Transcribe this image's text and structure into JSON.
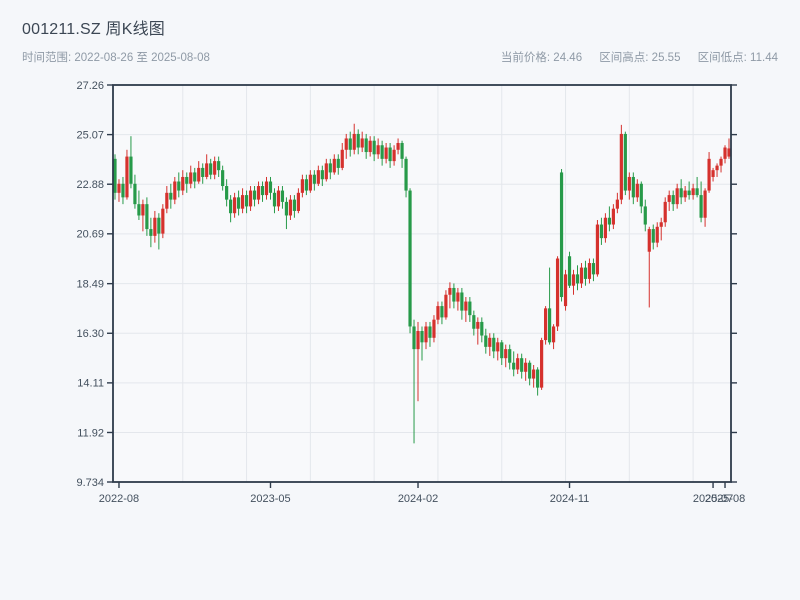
{
  "header": {
    "title": "001211.SZ 周K线图",
    "subtitle_left": "时间范围: 2022-08-26 至 2025-08-08",
    "meta": {
      "current": "当前价格: 24.46",
      "high": "区间高点: 25.55",
      "low": "区间低点: 11.44"
    }
  },
  "chart_data": {
    "type": "candlestick",
    "title": "001211.SZ 周K线图",
    "symbol": "001211.SZ",
    "period": "weekly",
    "date_range": {
      "start": "2022-08-26",
      "end": "2025-08-08"
    },
    "current_price": 24.46,
    "range_high": 25.55,
    "range_low": 11.44,
    "colors": {
      "up": "#d5312d",
      "down": "#279a49",
      "grid": "#e4e7ec",
      "spine": "#2e3b4b",
      "plot_bg": "#f8f9fb",
      "label": "#43505e"
    },
    "y_axis": {
      "min": 9.734,
      "max": 27.26,
      "tick_values": [
        27.26,
        25.07,
        22.88,
        20.69,
        18.49,
        16.3,
        14.11,
        11.92,
        9.734
      ],
      "tick_labels": [
        "27.26",
        "25.07",
        "22.88",
        "20.69",
        "18.49",
        "16.30",
        "14.11",
        "11.92",
        "9.734"
      ]
    },
    "x_axis": {
      "tick_labels": [
        "2022-08",
        "2023-05",
        "2024-02",
        "2024-11",
        "2025-07",
        "2025-08"
      ],
      "tick_week_indices": [
        1,
        39,
        76,
        114,
        150,
        153
      ]
    },
    "grid_week_indices": [
      17,
      33,
      49,
      65,
      81,
      97,
      113,
      129,
      145
    ],
    "ohlc_format": [
      "open",
      "high",
      "low",
      "close"
    ],
    "ohlc": [
      [
        24.0,
        24.2,
        22.2,
        22.5
      ],
      [
        22.5,
        23.1,
        22.1,
        22.9
      ],
      [
        22.9,
        23.2,
        22.0,
        22.3
      ],
      [
        22.3,
        24.4,
        22.2,
        24.1
      ],
      [
        24.1,
        25.0,
        22.7,
        22.9
      ],
      [
        22.9,
        23.3,
        21.8,
        22.0
      ],
      [
        22.0,
        22.6,
        21.3,
        21.5
      ],
      [
        21.5,
        22.2,
        20.8,
        22.0
      ],
      [
        22.0,
        22.3,
        20.6,
        20.9
      ],
      [
        20.9,
        21.4,
        20.1,
        20.6
      ],
      [
        20.6,
        21.7,
        20.3,
        21.4
      ],
      [
        21.4,
        21.6,
        20.0,
        20.7
      ],
      [
        20.7,
        22.0,
        20.5,
        21.8
      ],
      [
        21.8,
        22.8,
        21.6,
        22.5
      ],
      [
        22.5,
        22.9,
        21.8,
        22.2
      ],
      [
        22.2,
        23.2,
        22.0,
        23.0
      ],
      [
        23.0,
        23.4,
        22.3,
        22.6
      ],
      [
        22.6,
        23.5,
        22.4,
        23.2
      ],
      [
        23.2,
        23.4,
        22.5,
        22.9
      ],
      [
        22.9,
        23.7,
        22.7,
        23.4
      ],
      [
        23.4,
        23.6,
        22.7,
        23.0
      ],
      [
        23.0,
        23.9,
        22.9,
        23.6
      ],
      [
        23.6,
        23.8,
        22.9,
        23.2
      ],
      [
        23.2,
        24.2,
        23.1,
        23.8
      ],
      [
        23.8,
        24.0,
        23.1,
        23.3
      ],
      [
        23.3,
        24.1,
        23.1,
        23.9
      ],
      [
        23.9,
        24.1,
        23.2,
        23.5
      ],
      [
        23.5,
        23.7,
        22.6,
        22.8
      ],
      [
        22.8,
        23.1,
        21.9,
        22.2
      ],
      [
        22.2,
        22.4,
        21.2,
        21.6
      ],
      [
        21.6,
        22.5,
        21.4,
        22.3
      ],
      [
        22.3,
        22.6,
        21.5,
        21.8
      ],
      [
        21.8,
        22.7,
        21.6,
        22.4
      ],
      [
        22.4,
        22.6,
        21.6,
        21.9
      ],
      [
        21.9,
        22.8,
        21.7,
        22.6
      ],
      [
        22.6,
        22.8,
        21.9,
        22.2
      ],
      [
        22.2,
        23.0,
        22.0,
        22.8
      ],
      [
        22.8,
        23.0,
        22.1,
        22.4
      ],
      [
        22.4,
        23.2,
        22.2,
        23.0
      ],
      [
        23.0,
        23.2,
        22.2,
        22.5
      ],
      [
        22.5,
        22.7,
        21.6,
        21.9
      ],
      [
        21.9,
        22.8,
        21.7,
        22.6
      ],
      [
        22.6,
        22.8,
        21.8,
        22.1
      ],
      [
        22.1,
        22.3,
        20.9,
        21.5
      ],
      [
        21.5,
        22.4,
        21.3,
        22.2
      ],
      [
        22.2,
        22.4,
        21.4,
        21.7
      ],
      [
        21.7,
        22.7,
        21.6,
        22.5
      ],
      [
        22.5,
        23.3,
        22.3,
        23.1
      ],
      [
        23.1,
        23.3,
        22.4,
        22.6
      ],
      [
        22.6,
        23.5,
        22.5,
        23.3
      ],
      [
        23.3,
        23.5,
        22.6,
        22.9
      ],
      [
        22.9,
        23.7,
        22.8,
        23.5
      ],
      [
        23.5,
        23.7,
        22.8,
        23.1
      ],
      [
        23.1,
        24.0,
        23.0,
        23.8
      ],
      [
        23.8,
        24.0,
        23.1,
        23.4
      ],
      [
        23.4,
        24.2,
        23.3,
        24.0
      ],
      [
        24.0,
        24.2,
        23.3,
        23.6
      ],
      [
        23.6,
        24.7,
        23.5,
        24.4
      ],
      [
        24.4,
        25.1,
        24.0,
        24.9
      ],
      [
        24.9,
        25.2,
        24.1,
        24.4
      ],
      [
        24.4,
        25.55,
        24.2,
        25.1
      ],
      [
        25.1,
        25.3,
        24.2,
        24.5
      ],
      [
        24.5,
        25.2,
        24.3,
        24.9
      ],
      [
        24.9,
        25.1,
        24.0,
        24.3
      ],
      [
        24.3,
        25.0,
        24.1,
        24.8
      ],
      [
        24.8,
        25.0,
        23.9,
        24.2
      ],
      [
        24.2,
        24.9,
        24.0,
        24.6
      ],
      [
        24.6,
        24.8,
        23.7,
        24.0
      ],
      [
        24.0,
        24.7,
        23.8,
        24.5
      ],
      [
        24.5,
        24.7,
        23.6,
        23.9
      ],
      [
        23.9,
        24.6,
        23.7,
        24.4
      ],
      [
        24.4,
        24.9,
        24.2,
        24.7
      ],
      [
        24.7,
        24.8,
        23.6,
        24.0
      ],
      [
        24.0,
        24.1,
        22.3,
        22.6
      ],
      [
        22.6,
        22.7,
        16.3,
        16.6
      ],
      [
        16.6,
        16.9,
        11.44,
        15.6
      ],
      [
        15.6,
        16.8,
        13.3,
        16.4
      ],
      [
        16.4,
        16.6,
        15.1,
        15.9
      ],
      [
        15.9,
        16.8,
        15.6,
        16.6
      ],
      [
        16.6,
        16.8,
        15.7,
        16.1
      ],
      [
        16.1,
        17.1,
        15.9,
        16.9
      ],
      [
        16.9,
        17.7,
        16.7,
        17.5
      ],
      [
        17.5,
        17.7,
        16.7,
        17.0
      ],
      [
        17.0,
        18.2,
        16.9,
        18.0
      ],
      [
        18.0,
        18.55,
        17.4,
        18.3
      ],
      [
        18.3,
        18.5,
        17.4,
        17.7
      ],
      [
        17.7,
        18.3,
        17.3,
        18.1
      ],
      [
        18.1,
        18.3,
        16.9,
        17.3
      ],
      [
        17.3,
        17.9,
        16.8,
        17.7
      ],
      [
        17.7,
        17.9,
        16.8,
        17.1
      ],
      [
        17.1,
        17.3,
        16.2,
        16.5
      ],
      [
        16.5,
        17.0,
        15.8,
        16.8
      ],
      [
        16.8,
        17.0,
        15.9,
        16.2
      ],
      [
        16.2,
        16.5,
        15.4,
        15.7
      ],
      [
        15.7,
        16.3,
        15.3,
        16.1
      ],
      [
        16.1,
        16.3,
        15.2,
        15.5
      ],
      [
        15.5,
        16.1,
        15.1,
        15.9
      ],
      [
        15.9,
        16.0,
        14.9,
        15.2
      ],
      [
        15.2,
        15.8,
        14.8,
        15.6
      ],
      [
        15.6,
        15.8,
        14.7,
        15.0
      ],
      [
        15.0,
        15.5,
        14.4,
        14.7
      ],
      [
        14.7,
        15.4,
        14.5,
        15.2
      ],
      [
        15.2,
        15.4,
        14.3,
        14.6
      ],
      [
        14.6,
        15.2,
        14.2,
        15.0
      ],
      [
        15.0,
        15.1,
        14.0,
        14.3
      ],
      [
        14.3,
        14.9,
        13.9,
        14.7
      ],
      [
        14.7,
        14.8,
        13.55,
        13.9
      ],
      [
        13.9,
        16.1,
        13.8,
        16.0
      ],
      [
        16.0,
        17.5,
        15.8,
        17.4
      ],
      [
        17.4,
        19.2,
        15.8,
        15.9
      ],
      [
        15.9,
        16.7,
        15.6,
        16.6
      ],
      [
        16.6,
        19.7,
        16.4,
        19.6
      ],
      [
        23.4,
        23.55,
        17.7,
        17.9
      ],
      [
        17.5,
        19.1,
        17.3,
        18.9
      ],
      [
        19.7,
        19.9,
        18.3,
        18.4
      ],
      [
        18.4,
        19.1,
        18.0,
        18.9
      ],
      [
        18.9,
        19.3,
        18.2,
        18.5
      ],
      [
        18.5,
        19.4,
        18.3,
        19.2
      ],
      [
        19.2,
        19.5,
        18.4,
        18.7
      ],
      [
        18.7,
        19.6,
        18.5,
        19.4
      ],
      [
        19.4,
        19.6,
        18.6,
        18.9
      ],
      [
        18.9,
        21.3,
        18.8,
        21.1
      ],
      [
        21.1,
        21.4,
        20.2,
        20.5
      ],
      [
        20.5,
        21.6,
        20.3,
        21.4
      ],
      [
        21.4,
        21.9,
        20.8,
        21.1
      ],
      [
        21.1,
        22.0,
        20.9,
        21.8
      ],
      [
        21.8,
        22.5,
        21.6,
        22.2
      ],
      [
        22.2,
        25.5,
        22.0,
        25.1
      ],
      [
        25.1,
        25.2,
        22.4,
        22.6
      ],
      [
        22.6,
        23.4,
        22.2,
        23.2
      ],
      [
        23.2,
        23.4,
        22.0,
        22.3
      ],
      [
        22.3,
        23.1,
        22.1,
        22.9
      ],
      [
        22.9,
        23.0,
        21.6,
        21.9
      ],
      [
        21.9,
        22.2,
        20.8,
        21.1
      ],
      [
        19.9,
        21.0,
        17.44,
        20.9
      ],
      [
        20.9,
        21.1,
        20.0,
        20.3
      ],
      [
        20.3,
        21.2,
        20.1,
        21.0
      ],
      [
        21.0,
        21.4,
        20.4,
        21.2
      ],
      [
        21.2,
        22.3,
        21.0,
        22.1
      ],
      [
        22.1,
        22.6,
        21.7,
        22.4
      ],
      [
        22.4,
        22.6,
        21.7,
        22.0
      ],
      [
        22.0,
        22.9,
        21.8,
        22.7
      ],
      [
        22.7,
        23.1,
        22.0,
        22.3
      ],
      [
        22.3,
        22.8,
        22.1,
        22.6
      ],
      [
        22.6,
        23.0,
        22.2,
        22.4
      ],
      [
        22.4,
        22.9,
        22.2,
        22.7
      ],
      [
        22.7,
        23.2,
        22.3,
        22.4
      ],
      [
        22.4,
        23.0,
        21.2,
        21.4
      ],
      [
        21.4,
        22.7,
        21.0,
        22.6
      ],
      [
        22.6,
        24.3,
        22.5,
        24.0
      ],
      [
        23.2,
        23.6,
        23.0,
        23.5
      ],
      [
        23.5,
        23.8,
        23.2,
        23.7
      ],
      [
        23.7,
        24.1,
        23.4,
        24.0
      ],
      [
        24.0,
        24.6,
        23.8,
        24.5
      ],
      [
        24.1,
        24.9,
        24.0,
        24.46
      ]
    ]
  }
}
